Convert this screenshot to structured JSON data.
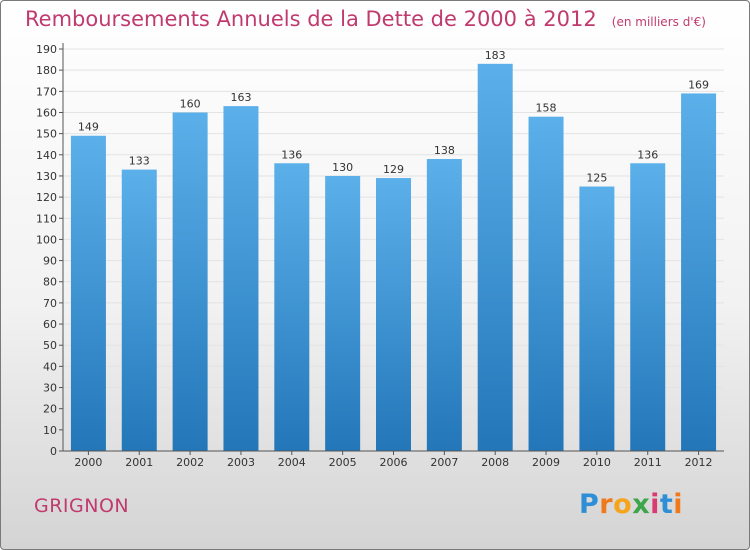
{
  "title": "Remboursements Annuels de la Dette de 2000 à 2012",
  "unit": "(en milliers d'€)",
  "city": "GRIGNON",
  "logo": {
    "letters": [
      "P",
      "r",
      "o",
      "x",
      "i",
      "t",
      "i"
    ],
    "colors": [
      "#2e8fd6",
      "#f07a1a",
      "#f4a51c",
      "#3da64a",
      "#d93a74",
      "#2e8fd6",
      "#f07a1a"
    ]
  },
  "colors": {
    "title": "#c03a6e",
    "bar_top": "#5bb0ea",
    "bar_bottom": "#2377b9"
  },
  "chart_data": {
    "type": "bar",
    "categories": [
      "2000",
      "2001",
      "2002",
      "2003",
      "2004",
      "2005",
      "2006",
      "2007",
      "2008",
      "2009",
      "2010",
      "2011",
      "2012"
    ],
    "values": [
      149,
      133,
      160,
      163,
      136,
      130,
      129,
      138,
      183,
      158,
      125,
      136,
      169
    ],
    "ylim": [
      0,
      190
    ],
    "yticks": [
      0,
      10,
      20,
      30,
      40,
      50,
      60,
      70,
      80,
      90,
      100,
      110,
      120,
      130,
      140,
      150,
      160,
      170,
      180,
      190
    ],
    "grid": true,
    "data_labels": true,
    "legend": "none"
  }
}
